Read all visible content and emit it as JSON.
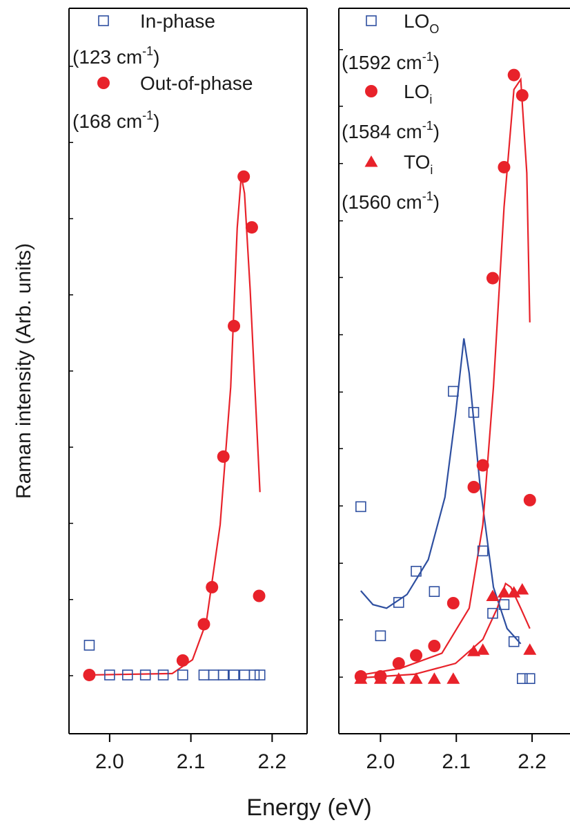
{
  "chart_data": [
    {
      "type": "scatter",
      "ylabel": "Raman intensity (Arb. units)",
      "xlabel": "Energy (eV)",
      "xlim": [
        1.95,
        2.243
      ],
      "xticks": [
        {
          "value": 2.0,
          "label": "2.0"
        },
        {
          "value": 2.1,
          "label": "2.1"
        },
        {
          "value": 2.2,
          "label": "2.2"
        }
      ],
      "ylim": [
        0,
        100
      ],
      "yticks": [
        8,
        18.5,
        29,
        39.5,
        50,
        60.5,
        71,
        81.5,
        92
      ],
      "series": [
        {
          "name": [
            "In-phase"
          ],
          "wavenumber": [
            "(123 cm",
            "-1",
            ")"
          ],
          "marker": "square",
          "color": "#2e4fa0",
          "x": [
            1.975,
            2.0,
            2.022,
            2.044,
            2.066,
            2.09,
            2.116,
            2.128,
            2.14,
            2.153,
            2.166,
            2.178,
            2.185
          ],
          "values": [
            12.2,
            8.1,
            8.1,
            8.1,
            8.1,
            8.1,
            8.1,
            8.1,
            8.1,
            8.1,
            8.1,
            8.1,
            8.1
          ]
        },
        {
          "name": [
            "Out-of-phase"
          ],
          "wavenumber": [
            "(168 cm",
            "-1",
            ")"
          ],
          "marker": "circle",
          "color": "#e8222a",
          "x": [
            1.975,
            2.09,
            2.116,
            2.126,
            2.14,
            2.153,
            2.165,
            2.175,
            2.184
          ],
          "values": [
            8.1,
            10.1,
            15.1,
            20.2,
            38.2,
            56.2,
            76.8,
            69.8,
            19.0
          ]
        }
      ],
      "fits": [
        {
          "color": "#e8222a",
          "x": [
            1.975,
            2.077,
            2.102,
            2.119,
            2.136,
            2.149,
            2.157,
            2.162,
            2.166,
            2.173,
            2.185
          ],
          "values": [
            8.1,
            8.3,
            10.2,
            15.4,
            28.8,
            47.8,
            69.7,
            76.9,
            74.5,
            61.1,
            33.3
          ]
        }
      ]
    },
    {
      "type": "scatter",
      "xlim": [
        1.945,
        2.25
      ],
      "xticks": [
        {
          "value": 2.0,
          "label": "2.0"
        },
        {
          "value": 2.1,
          "label": "2.1"
        },
        {
          "value": 2.2,
          "label": "2.2"
        }
      ],
      "ylim": [
        0,
        100
      ],
      "yticks": [
        7.8,
        15.7,
        23.5,
        31.4,
        39.3,
        47.1,
        55,
        62.9,
        70.7,
        78.6,
        86.5,
        94.3
      ],
      "series": [
        {
          "name": [
            "LO",
            "O"
          ],
          "wavenumber": [
            "(1592 cm",
            "-1",
            ")"
          ],
          "marker": "square",
          "color": "#2e4fa0",
          "x": [
            1.974,
            2.0,
            2.024,
            2.047,
            2.071,
            2.096,
            2.123,
            2.135,
            2.148,
            2.163,
            2.176,
            2.187,
            2.197
          ],
          "values": [
            31.3,
            13.5,
            18.1,
            22.4,
            19.6,
            47.2,
            44.3,
            25.2,
            16.6,
            17.8,
            12.7,
            7.6,
            7.6
          ]
        },
        {
          "name": [
            "LO",
            "i"
          ],
          "wavenumber": [
            "(1584 cm",
            "-1",
            ")"
          ],
          "marker": "circle",
          "color": "#e8222a",
          "x": [
            1.974,
            2.0,
            2.024,
            2.047,
            2.071,
            2.096,
            2.123,
            2.135,
            2.148,
            2.163,
            2.176,
            2.187,
            2.197
          ],
          "values": [
            7.9,
            7.9,
            9.7,
            10.8,
            12.1,
            18.0,
            34.0,
            37.0,
            62.8,
            78.1,
            90.8,
            88.0,
            32.2
          ]
        },
        {
          "name": [
            "TO",
            "i"
          ],
          "wavenumber": [
            "(1560 cm",
            "-1",
            ")"
          ],
          "marker": "triangle",
          "color": "#e8222a",
          "x": [
            1.974,
            2.0,
            2.024,
            2.047,
            2.071,
            2.096,
            2.123,
            2.135,
            2.148,
            2.163,
            2.176,
            2.187,
            2.197
          ],
          "values": [
            7.6,
            7.6,
            7.6,
            7.6,
            7.6,
            7.6,
            11.4,
            11.6,
            19.0,
            19.5,
            19.5,
            19.9,
            11.6
          ]
        }
      ],
      "fits": [
        {
          "color": "#2e4fa0",
          "x": [
            1.974,
            1.99,
            2.008,
            2.035,
            2.063,
            2.085,
            2.099,
            2.11,
            2.117,
            2.131,
            2.149,
            2.167,
            2.185
          ],
          "values": [
            19.7,
            17.8,
            17.3,
            19.2,
            24,
            32.6,
            44,
            54.5,
            49.7,
            34.5,
            20.2,
            14.5,
            12.4
          ]
        },
        {
          "color": "#e8222a",
          "x": [
            1.974,
            2.026,
            2.081,
            2.117,
            2.135,
            2.149,
            2.163,
            2.176,
            2.185,
            2.193,
            2.197
          ],
          "values": [
            8.1,
            9.0,
            11.1,
            17.3,
            28.8,
            47.8,
            72.6,
            88.8,
            90.2,
            77.3,
            56.7
          ]
        },
        {
          "color": "#e8222a",
          "x": [
            1.974,
            2.045,
            2.099,
            2.135,
            2.154,
            2.165,
            2.172,
            2.185,
            2.197
          ],
          "values": [
            7.7,
            8.2,
            9.7,
            13.0,
            17.3,
            20.7,
            20.2,
            17.3,
            14.5
          ]
        }
      ]
    }
  ]
}
